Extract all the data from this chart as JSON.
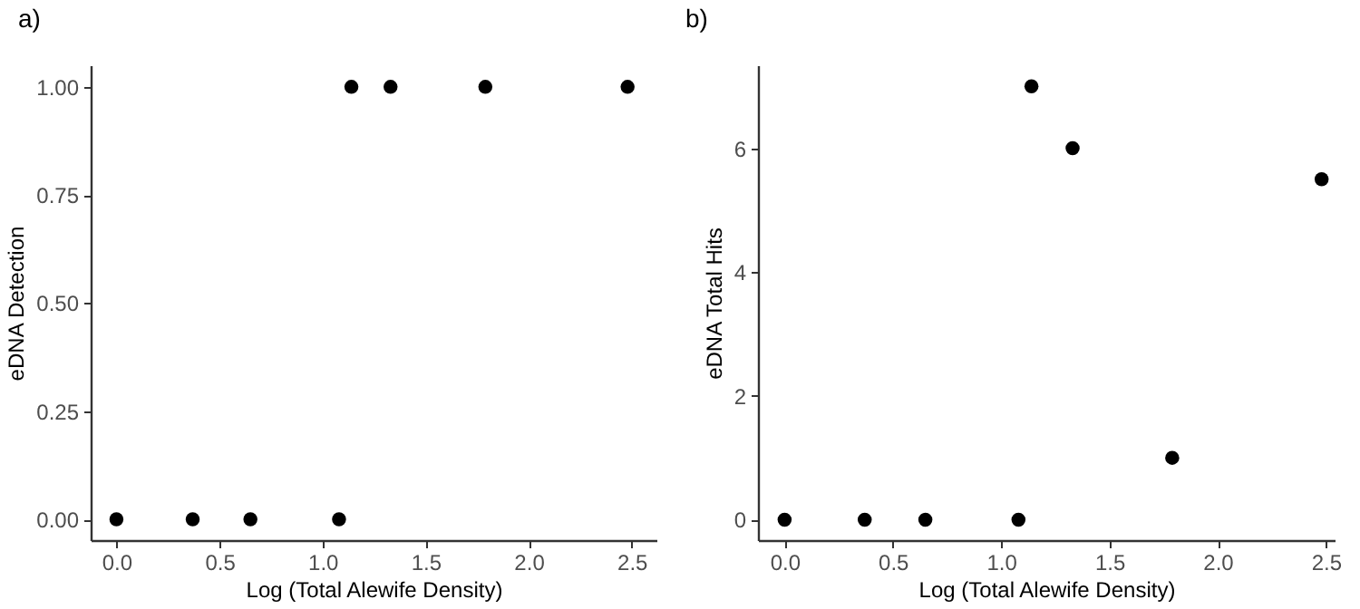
{
  "chart_data": [
    {
      "type": "scatter",
      "title": "a)",
      "xlabel": "Log (Total Alewife Density)",
      "ylabel": "eDNA Detection",
      "x": [
        0,
        0.37,
        0.65,
        1.08,
        1.14,
        1.33,
        1.79,
        2.48
      ],
      "series": [
        {
          "color": "#000000",
          "values": [
            0,
            0,
            0,
            0,
            1,
            1,
            1,
            1
          ]
        }
      ],
      "xlim": [
        -0.125,
        2.62
      ],
      "ylim": [
        -0.048,
        1.05
      ],
      "xticks": [
        {
          "value": 0,
          "label": "0.0"
        },
        0.5,
        {
          "value": 1,
          "label": "1.0"
        },
        1.5,
        {
          "value": 2,
          "label": "2.0"
        },
        2.5
      ],
      "yticks": [
        {
          "value": 0,
          "label": "0.00"
        },
        {
          "value": 0.25,
          "label": "0.25"
        },
        {
          "value": 0.5,
          "label": "0.50"
        },
        {
          "value": 0.75,
          "label": "0.75"
        },
        {
          "value": 1,
          "label": "1.00"
        }
      ],
      "marker": "circle",
      "grid": false
    },
    {
      "type": "scatter",
      "title": "b)",
      "xlabel": "Log (Total Alewife Density)",
      "ylabel": "eDNA Total Hits",
      "x": [
        0,
        0.37,
        0.65,
        1.08,
        1.14,
        1.33,
        1.79,
        2.48
      ],
      "series": [
        {
          "color": "#000000",
          "values": [
            0,
            0,
            0,
            0,
            7,
            6,
            1,
            5.5
          ]
        }
      ],
      "xlim": [
        -0.123,
        2.54
      ],
      "ylim": [
        -0.33,
        7.34
      ],
      "xticks": [
        {
          "value": 0,
          "label": "0.0"
        },
        0.5,
        {
          "value": 1,
          "label": "1.0"
        },
        1.5,
        {
          "value": 2,
          "label": "2.0"
        },
        2.5
      ],
      "yticks": [
        0,
        2,
        4,
        6
      ],
      "marker": "circle",
      "grid": false
    }
  ]
}
